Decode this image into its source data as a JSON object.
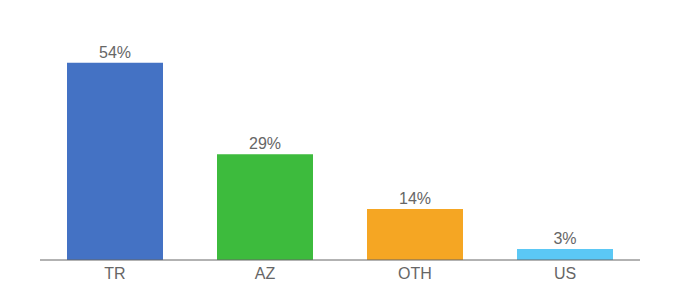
{
  "chart_data": {
    "type": "bar",
    "categories": [
      "TR",
      "AZ",
      "OTH",
      "US"
    ],
    "values": [
      54,
      29,
      14,
      3
    ],
    "value_labels": [
      "54%",
      "29%",
      "14%",
      "3%"
    ],
    "colors": [
      "#4472c4",
      "#3dbb3d",
      "#f5a623",
      "#5bc8f5"
    ],
    "ylim": [
      0,
      63
    ],
    "data_labels": true,
    "grid": false,
    "tick_labels": "x"
  }
}
